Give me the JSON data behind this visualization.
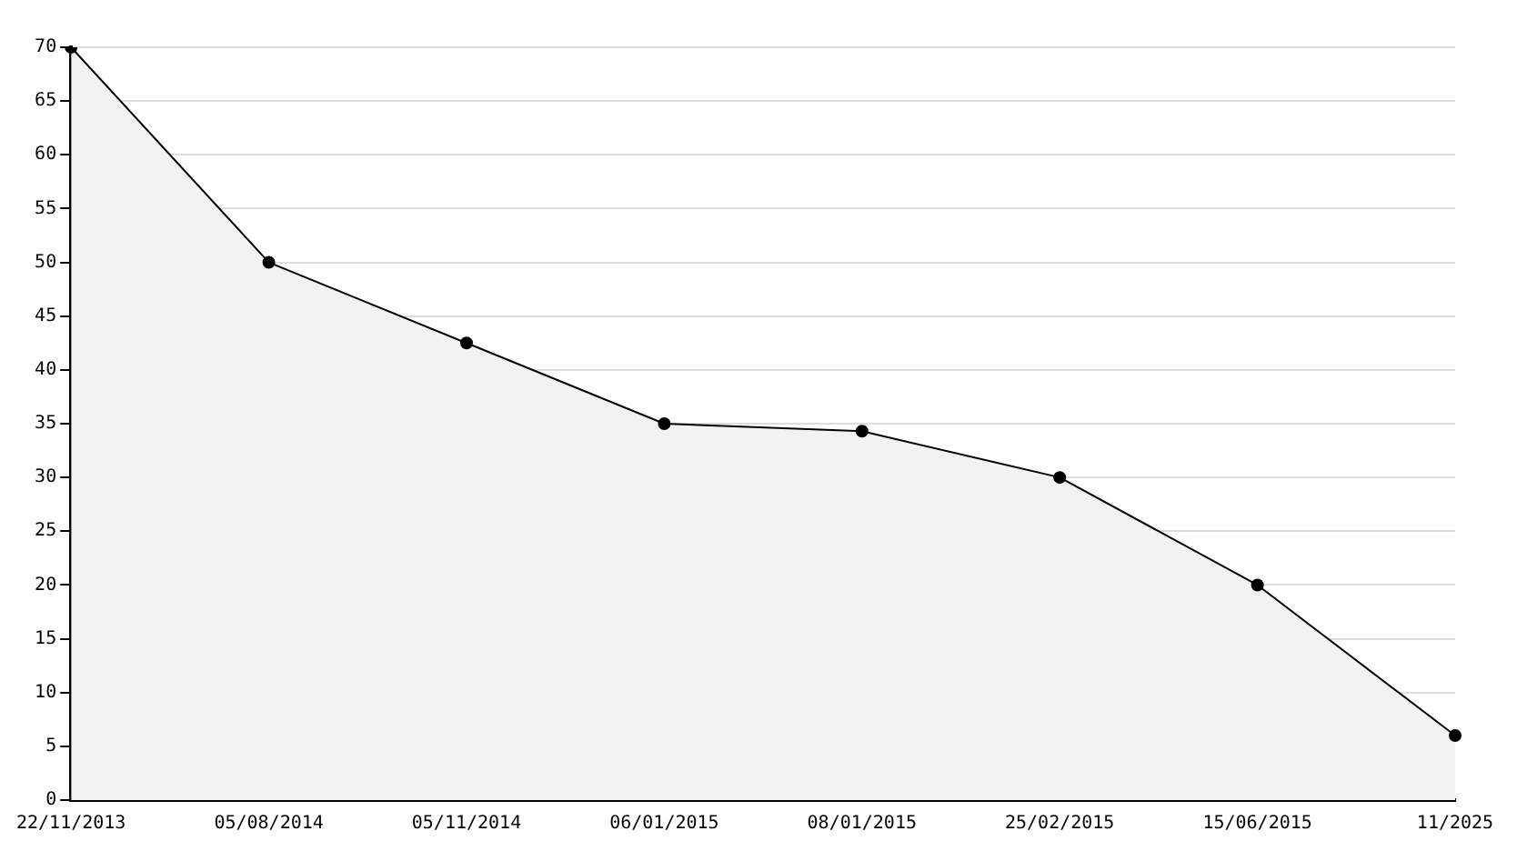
{
  "chart_data": {
    "type": "area",
    "categories": [
      "22/11/2013",
      "05/08/2014",
      "05/11/2014",
      "06/01/2015",
      "08/01/2015",
      "25/02/2015",
      "15/06/2015",
      "11/2025"
    ],
    "values": [
      70,
      50,
      42.5,
      35,
      34.3,
      30,
      20,
      6
    ],
    "color": "#000000",
    "ylim": [
      0,
      70
    ],
    "yticks": [
      0,
      5,
      10,
      15,
      20,
      25,
      30,
      35,
      40,
      45,
      50,
      55,
      60,
      65,
      70
    ],
    "grid": "y",
    "marker": "circle",
    "legend": false
  }
}
